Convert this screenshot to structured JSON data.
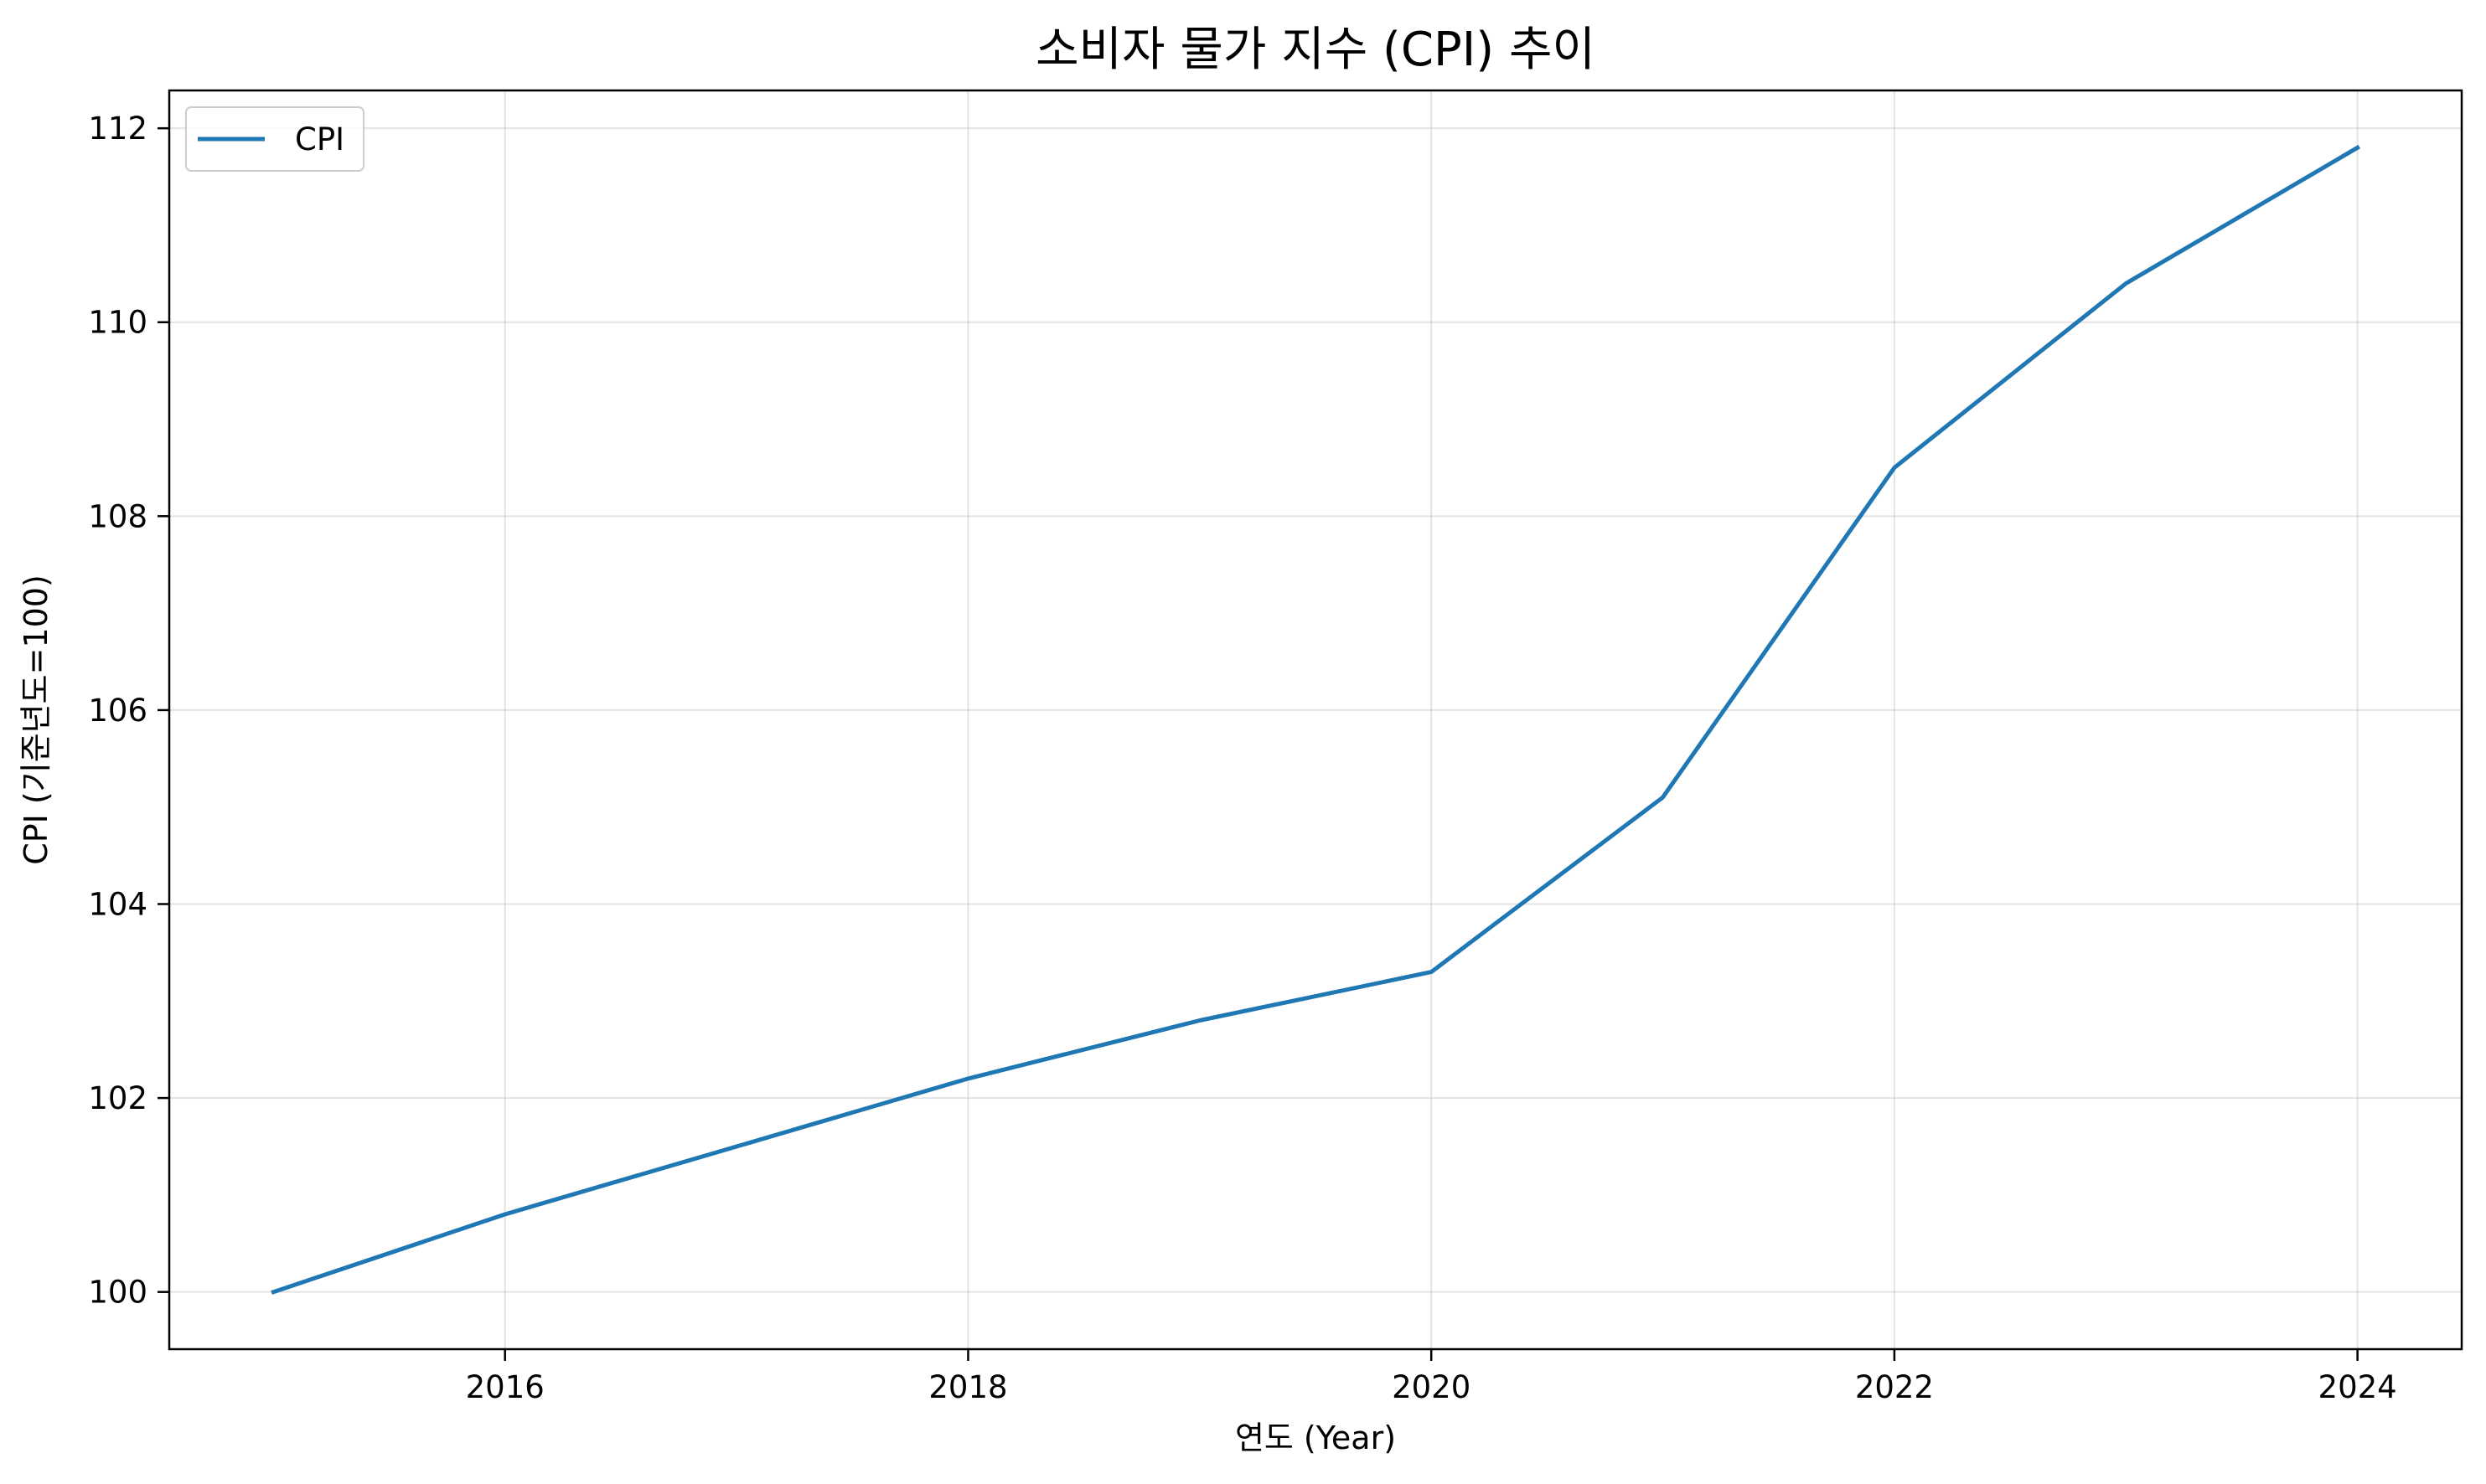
{
  "chart_data": {
    "type": "line",
    "title": "소비자 물가 지수 (CPI) 추이",
    "xlabel": "연도 (Year)",
    "ylabel": "CPI (기준년도=100)",
    "x": [
      2015,
      2016,
      2017,
      2018,
      2019,
      2020,
      2021,
      2022,
      2023,
      2024
    ],
    "series": [
      {
        "name": "CPI",
        "color": "#1f77b4",
        "values": [
          100.0,
          100.8,
          101.5,
          102.2,
          102.8,
          103.3,
          105.1,
          108.5,
          110.4,
          111.8
        ]
      }
    ],
    "xlim": [
      2014.55,
      2024.45
    ],
    "ylim": [
      99.41,
      112.39
    ],
    "xticks": [
      "2016",
      "2018",
      "2020",
      "2022",
      "2024"
    ],
    "yticks": [
      "100",
      "102",
      "104",
      "106",
      "108",
      "110",
      "112"
    ],
    "grid": true,
    "legend": "upper-left"
  }
}
